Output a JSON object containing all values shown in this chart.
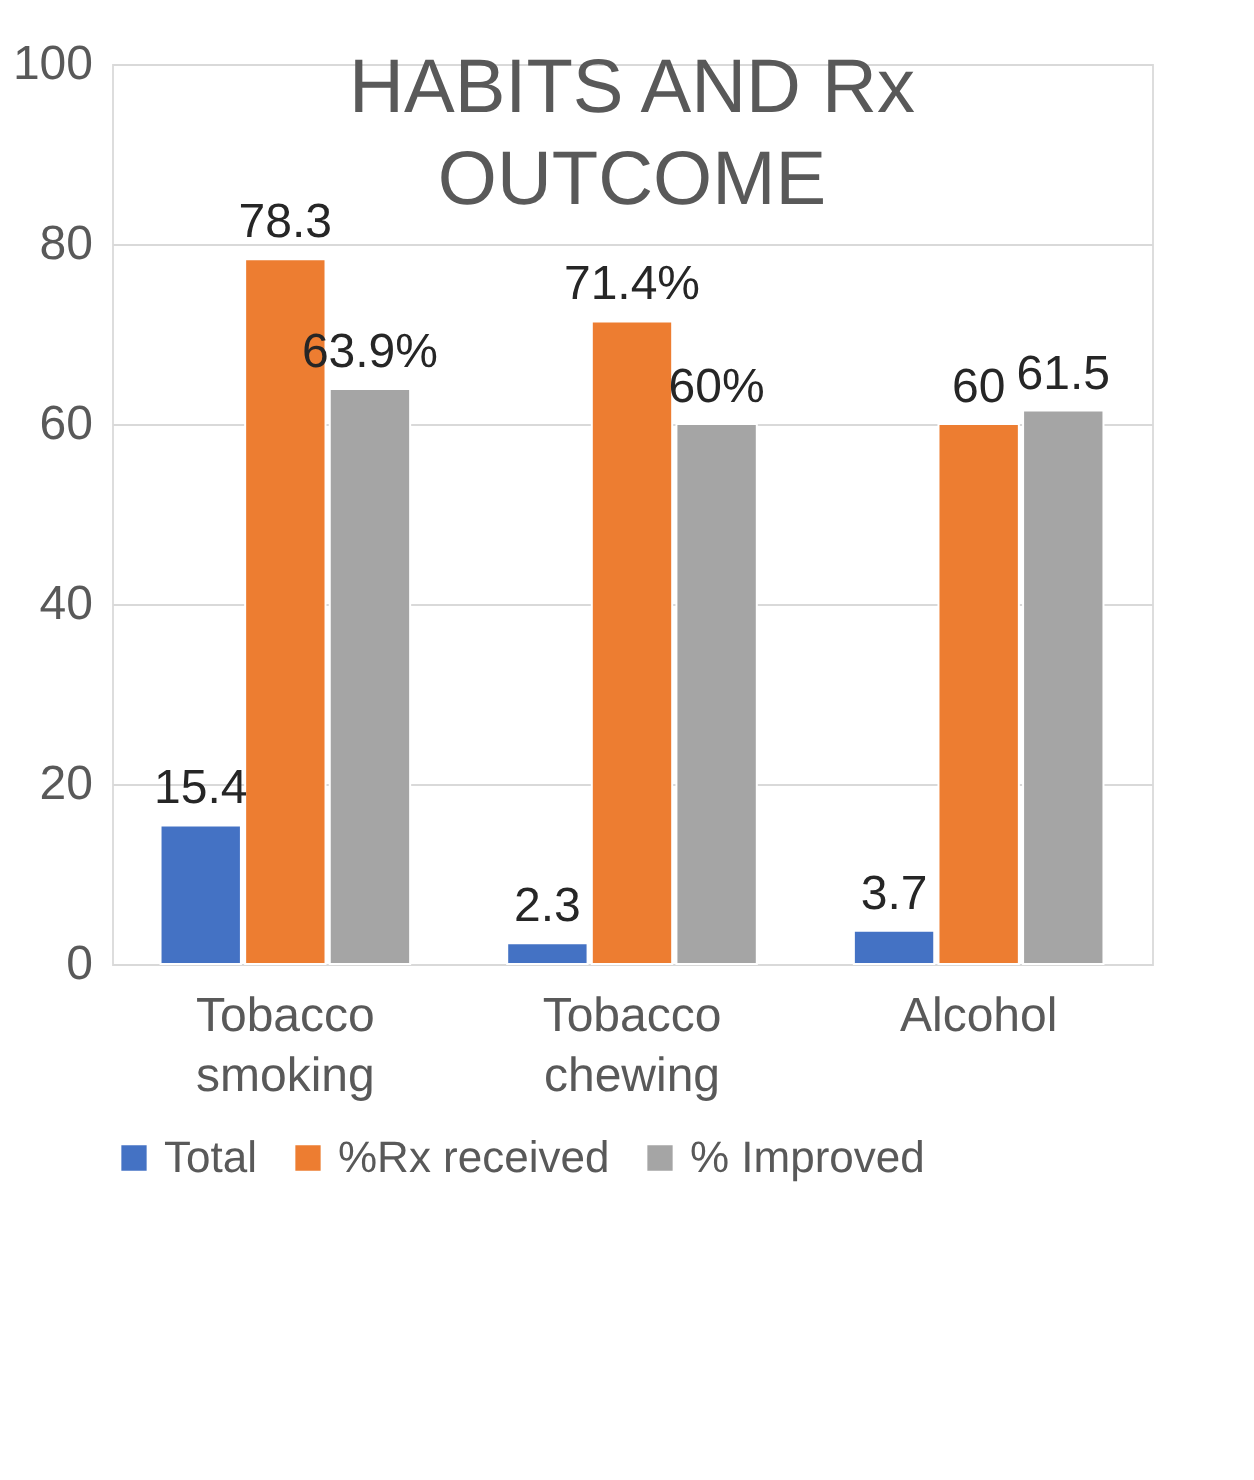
{
  "chart_data": {
    "type": "bar",
    "title": "HABITS AND Rx OUTCOME",
    "categories": [
      "Tobacco smoking",
      "Tobacco chewing",
      "Alcohol"
    ],
    "series": [
      {
        "name": "Total",
        "color": "#4472c4",
        "values": [
          15.4,
          2.3,
          3.7
        ],
        "value_labels": [
          "15.4",
          "2.3",
          "3.7"
        ]
      },
      {
        "name": "%Rx received",
        "color": "#ed7d31",
        "values": [
          78.3,
          71.4,
          60
        ],
        "value_labels": [
          "78.3",
          "71.4%",
          "60"
        ]
      },
      {
        "name": "% Improved",
        "color": "#a5a5a5",
        "values": [
          63.9,
          60,
          61.5
        ],
        "value_labels": [
          "63.9%",
          "60%",
          "61.5"
        ]
      }
    ],
    "ylim": [
      0,
      100
    ],
    "yticks": [
      0,
      20,
      40,
      60,
      80,
      100
    ],
    "grid": "y",
    "legend": "bottom"
  }
}
